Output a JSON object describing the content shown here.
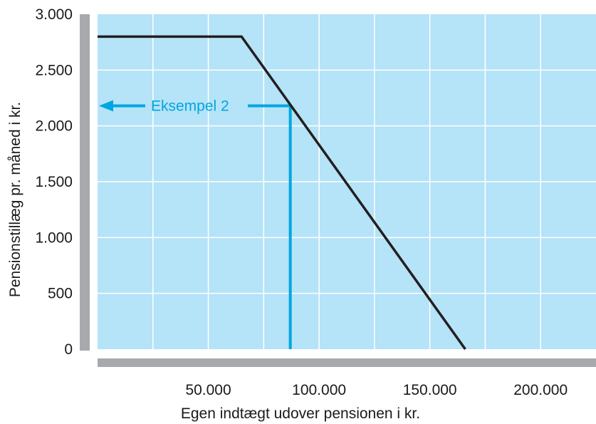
{
  "chart_data": {
    "type": "line",
    "title": "",
    "xlabel": "Egen indtægt udover pensionen i kr.",
    "ylabel": "Pensionstillæg pr. måned i kr.",
    "xlim": [
      0,
      225000
    ],
    "ylim": [
      0,
      3000
    ],
    "x_ticks": [
      {
        "value": 50000,
        "label": "50.000"
      },
      {
        "value": 100000,
        "label": "100.000"
      },
      {
        "value": 150000,
        "label": "150.000"
      },
      {
        "value": 200000,
        "label": "200.000"
      }
    ],
    "x_minor_gridlines": [
      25000,
      75000,
      125000,
      175000,
      225000
    ],
    "y_ticks": [
      {
        "value": 0,
        "label": "0"
      },
      {
        "value": 500,
        "label": "500"
      },
      {
        "value": 1000,
        "label": "1.000"
      },
      {
        "value": 1500,
        "label": "1.500"
      },
      {
        "value": 2000,
        "label": "2.000"
      },
      {
        "value": 2500,
        "label": "2.500"
      },
      {
        "value": 3000,
        "label": "3.000"
      }
    ],
    "grid": true,
    "series": [
      {
        "color": "#231f20",
        "x": [
          0,
          65000,
          166000
        ],
        "y": [
          2800,
          2800,
          0
        ]
      }
    ],
    "annotations": [
      {
        "text": "Eksempel 2",
        "x": 87000,
        "y": 2180,
        "color": "#00a6e0"
      }
    ],
    "colors": {
      "plot_background": "#b5e3f7",
      "gridline": "#ffffff",
      "axis_bar": "#a7a9ac",
      "line": "#231f20",
      "annotation": "#00a6e0"
    }
  }
}
